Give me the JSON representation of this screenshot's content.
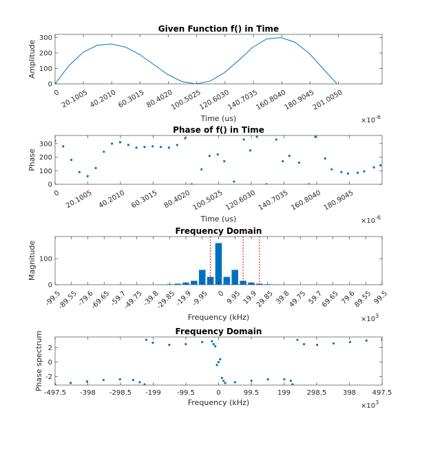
{
  "colors": {
    "series": "#0072bd",
    "marker_line": "#ff0000",
    "axis": "#262626"
  },
  "chart_data": [
    {
      "type": "line",
      "title": "Given Function f() in Time",
      "xlabel": "Time (us)",
      "ylabel": "Amplitude",
      "exponent_base": "×10",
      "exponent_power": "-6",
      "xlim": [
        0,
        0.000232
      ],
      "ylim": [
        0,
        320
      ],
      "xticks": [
        0,
        2.01005e-05,
        4.0201e-05,
        6.03015e-05,
        8.0402e-05,
        0.0001005025,
        0.000120603,
        0.0001407035,
        0.000160804,
        0.0001809045,
        0.000201005
      ],
      "xtick_labels": [
        "0",
        "20.1005",
        "40.2010",
        "60.3015",
        "80.4020",
        "100.5025",
        "120.6030",
        "140.7035",
        "160.8040",
        "180.9045",
        "201.0050"
      ],
      "yticks": [
        0,
        100,
        200,
        300
      ],
      "ytick_labels": [
        "0",
        "100",
        "200",
        "300"
      ],
      "x": [
        0,
        1e-05,
        2e-05,
        3e-05,
        4e-05,
        5e-05,
        6e-05,
        7e-05,
        8e-05,
        9e-05,
        0.0001,
        0.00011,
        0.00012,
        0.00013,
        0.00014,
        0.00015,
        0.00016,
        0.00017,
        0.00018,
        0.00019,
        0.0002
      ],
      "y": [
        0,
        120,
        205,
        250,
        258,
        238,
        190,
        125,
        60,
        15,
        0,
        18,
        72,
        150,
        235,
        290,
        300,
        270,
        200,
        100,
        0
      ]
    },
    {
      "type": "scatter",
      "title": "Phase of f() in Time",
      "xlabel": "Time (us)",
      "ylabel": "Phase",
      "exponent_base": "×10",
      "exponent_power": "-6",
      "xlim": [
        0,
        0.000201
      ],
      "ylim": [
        0,
        360
      ],
      "xticks": [
        0,
        2.01005e-05,
        4.0201e-05,
        6.03015e-05,
        8.0402e-05,
        0.0001005025,
        0.000120603,
        0.0001407035,
        0.000160804,
        0.0001809045
      ],
      "xtick_labels": [
        "0",
        "20.1005",
        "40.2010",
        "60.3015",
        "80.4020",
        "100.5025",
        "120.6030",
        "140.7035",
        "160.8040",
        "180.9045"
      ],
      "yticks": [
        0,
        100,
        200,
        300
      ],
      "ytick_labels": [
        "0",
        "100",
        "200",
        "300"
      ],
      "x": [
        0,
        5e-06,
        1e-05,
        1.5e-05,
        2e-05,
        2.5e-05,
        3e-05,
        3.5e-05,
        4e-05,
        4.5e-05,
        5e-05,
        5.5e-05,
        6e-05,
        6.5e-05,
        7e-05,
        7.5e-05,
        8e-05,
        8.4e-05,
        9e-05,
        9.5e-05,
        0.0001,
        0.000104,
        0.00011,
        0.000116,
        0.00012,
        0.000124,
        0.00013,
        0.000136,
        0.00014,
        0.000144,
        0.00015,
        0.000156,
        0.00016,
        0.000166,
        0.00017,
        0.000176,
        0.00018,
        0.000186,
        0.00019,
        0.000196,
        0.0002
      ],
      "y": [
        320,
        280,
        180,
        90,
        60,
        120,
        240,
        300,
        310,
        290,
        270,
        275,
        280,
        275,
        270,
        290,
        340,
        0,
        110,
        210,
        220,
        170,
        20,
        330,
        250,
        350,
        0,
        330,
        170,
        210,
        160,
        0,
        350,
        190,
        110,
        90,
        80,
        85,
        95,
        125,
        140
      ]
    },
    {
      "type": "bar",
      "title": "Frequency Domain",
      "xlabel": "Frequency (kHz)",
      "ylabel": "Magnitude",
      "exponent_base": "×10",
      "exponent_power": "3",
      "xlim": [
        -99500,
        99500
      ],
      "ylim": [
        0,
        185
      ],
      "xticks": [
        -99500,
        -89550,
        -79600,
        -69650,
        -59700,
        -49750,
        -39800,
        -29850,
        -19900,
        -9950,
        0,
        9950,
        19900,
        29850,
        39800,
        49750,
        59700,
        69650,
        79600,
        89550,
        99500
      ],
      "xtick_labels": [
        "-99.5",
        "-89.55",
        "-79.6",
        "-69.65",
        "-59.7",
        "-49.75",
        "-39.8",
        "-29.85",
        "-19.9",
        "-9.95",
        "0",
        "9.95",
        "19.9",
        "29.85",
        "39.8",
        "49.75",
        "59.7",
        "69.65",
        "79.6",
        "89.55",
        "99.5"
      ],
      "yticks": [
        0,
        100
      ],
      "ytick_labels": [
        "0",
        "100"
      ],
      "bar_width": 4000,
      "x": [
        -34825,
        -29850,
        -24875,
        -19900,
        -14925,
        -9950,
        -4975,
        0,
        4975,
        9950,
        14925,
        19900,
        24875,
        29850,
        34825
      ],
      "values": [
        1,
        2,
        4,
        8,
        15,
        57,
        30,
        160,
        30,
        57,
        15,
        8,
        4,
        2,
        1
      ],
      "markers_x": [
        -4975,
        14925,
        24875
      ]
    },
    {
      "type": "scatter",
      "title": "Frequency Domain",
      "xlabel": "Frequency (kHz)",
      "ylabel": "Phase spectrum",
      "exponent_base": "×10",
      "exponent_power": "3",
      "xlim": [
        -497500,
        497500
      ],
      "ylim": [
        -3.2,
        3.5
      ],
      "xticks": [
        -497500,
        -398000,
        -298500,
        -199000,
        -99500,
        0,
        99500,
        199000,
        298500,
        398000,
        497500
      ],
      "xtick_labels": [
        "-497.5",
        "-398",
        "-298.5",
        "-199",
        "-99.5",
        "0",
        "99.5",
        "199",
        "298.5",
        "398",
        "497.5"
      ],
      "yticks": [
        -2,
        0,
        2
      ],
      "ytick_labels": [
        "-2",
        "0",
        "2"
      ],
      "x": [
        -497500,
        -450000,
        -400000,
        -350000,
        -300000,
        -260000,
        -240000,
        -225000,
        -220000,
        -200000,
        -150000,
        -100000,
        -50000,
        -20000,
        -15000,
        -10000,
        -5000,
        0,
        5000,
        10000,
        15000,
        20000,
        50000,
        100000,
        150000,
        200000,
        220000,
        225000,
        240000,
        260000,
        300000,
        350000,
        400000,
        450000,
        497500
      ],
      "y": [
        -3.1,
        -2.9,
        -2.7,
        -2.5,
        -2.4,
        -2.5,
        -2.8,
        -3.1,
        3.1,
        2.7,
        2.4,
        2.5,
        2.8,
        2.9,
        2.5,
        2.2,
        -0.4,
        0,
        0.4,
        -2.2,
        -2.6,
        -2.9,
        -2.8,
        -2.6,
        -2.4,
        -2.4,
        -2.6,
        -3.1,
        3.1,
        2.5,
        2.4,
        2.6,
        2.8,
        3.0,
        3.1
      ]
    }
  ]
}
